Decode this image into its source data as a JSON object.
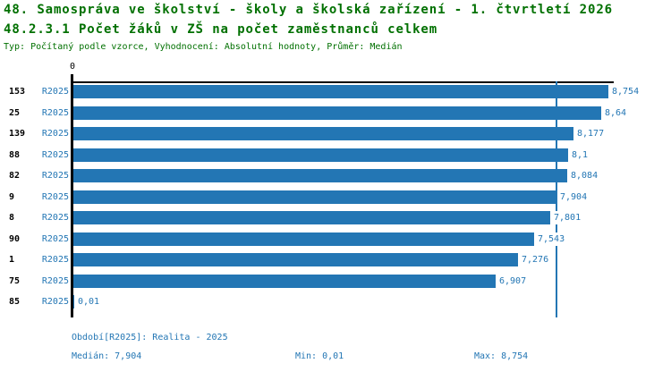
{
  "header": {
    "title_line1": "48. Samospráva ve školství - školy a školská zařízení - 1. čtvrtletí 2026",
    "title_line2": "48.2.3.1 Počet žáků v ZŠ na počet zaměstnanců celkem",
    "subtitle": "Typ: Počítaný podle vzorce, Vyhodnocení: Absolutní hodnoty, Průměr: Medián"
  },
  "chart_data": {
    "type": "bar",
    "orientation": "horizontal",
    "title": "48.2.3.1 Počet žáků v ZŠ na počet zaměstnanců celkem",
    "categories": [
      "153",
      "25",
      "139",
      "88",
      "82",
      "9",
      "8",
      "90",
      "1",
      "75",
      "85"
    ],
    "period_label": "R2025",
    "series": [
      {
        "name": "R2025",
        "values": [
          8.754,
          8.64,
          8.177,
          8.1,
          8.084,
          7.904,
          7.801,
          7.543,
          7.276,
          6.907,
          0.01
        ],
        "value_labels": [
          "8,754",
          "8,64",
          "8,177",
          "8,1",
          "8,084",
          "7,904",
          "7,801",
          "7,543",
          "7,276",
          "6,907",
          "0,01"
        ]
      }
    ],
    "median_value": 7.904,
    "axis": {
      "origin_label": "0",
      "xmin": 0,
      "xmax": 8.84,
      "grid": false
    },
    "legend_position": "none",
    "colors": {
      "bar": "#2376B4",
      "median_line": "#2376B4",
      "value_text": "#2376B4",
      "axis": "#000000",
      "title": "#007000"
    }
  },
  "footer": {
    "period_info": "Období[R2025]: Realita - 2025",
    "median": "Medián: 7,904",
    "min": "Min: 0,01",
    "max": "Max: 8,754"
  }
}
